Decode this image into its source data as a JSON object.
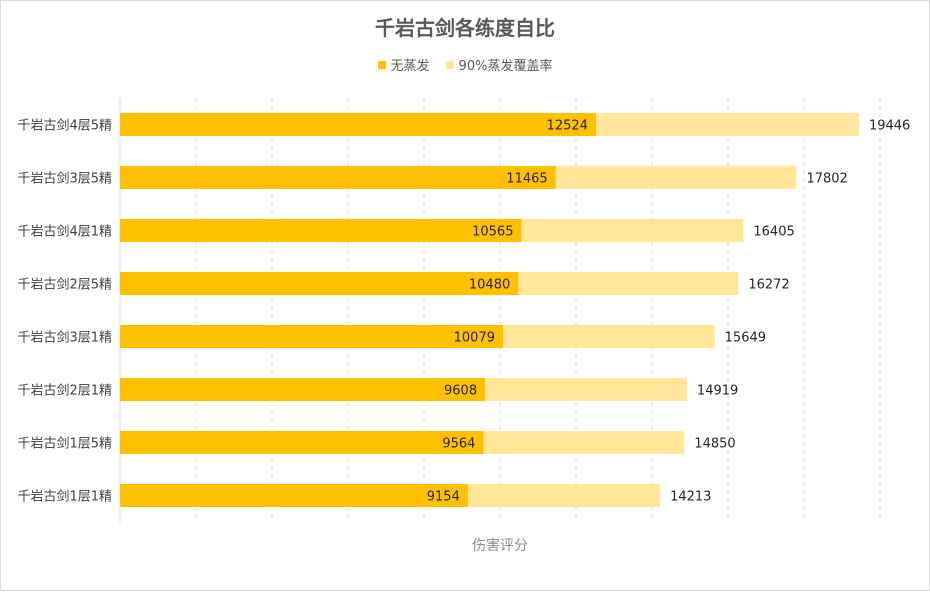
{
  "chart_data": {
    "type": "bar",
    "orientation": "horizontal",
    "stacked": false,
    "overlap": true,
    "title": "千岩古剑各练度自比",
    "xlabel": "伤害评分",
    "ylabel": "",
    "xlim": [
      0,
      20000
    ],
    "grid": "vertical dashed",
    "legend_position": "top",
    "categories": [
      "千岩古剑4层5精",
      "千岩古剑3层5精",
      "千岩古剑4层1精",
      "千岩古剑2层5精",
      "千岩古剑3层1精",
      "千岩古剑2层1精",
      "千岩古剑1层5精",
      "千岩古剑1层1精"
    ],
    "series": [
      {
        "name": "无蒸发",
        "color": "#FFC000",
        "values": [
          12524,
          11465,
          10565,
          10480,
          10079,
          9608,
          9564,
          9154
        ]
      },
      {
        "name": "90%蒸发覆盖率",
        "color": "#FFE699",
        "values": [
          19446,
          17802,
          16405,
          16272,
          15649,
          14919,
          14850,
          14213
        ]
      }
    ]
  }
}
